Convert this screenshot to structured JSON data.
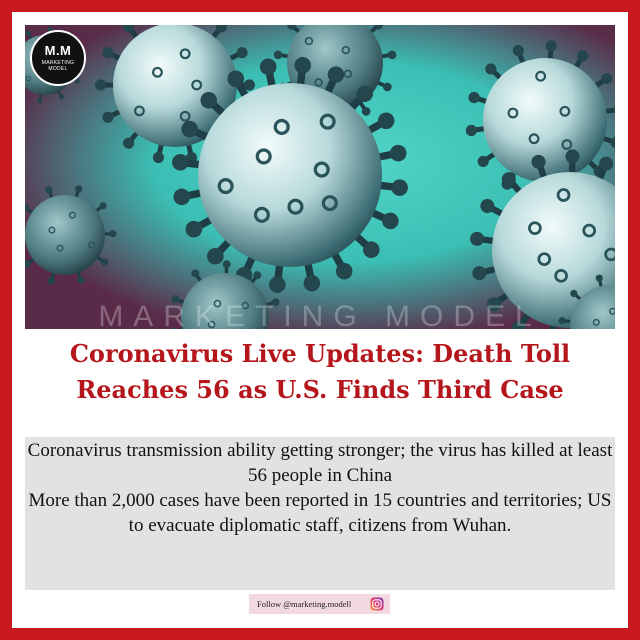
{
  "logo": {
    "mark": "M.M",
    "name": "MARKETING MODEL"
  },
  "watermark": "MARKETING MODEL",
  "headline": {
    "line1": "Coronavirus Live Updates: Death Toll",
    "line2": "Reaches 56 as U.S. Finds Third Case"
  },
  "body": {
    "paragraph1": "Coronavirus transmission ability getting stronger; the virus has killed at least 56 people in China",
    "paragraph2": "More than 2,000 cases have been reported in 15 countries and territories; US to evacuate diplomatic staff, citizens from Wuhan."
  },
  "footer": {
    "follow_text": "Follow @marketing.modell",
    "icon": "instagram-icon"
  },
  "colors": {
    "border": "#c8191e",
    "headline": "#b5161b",
    "virus": "#cfe6e6",
    "background_teal": "#3ec9bd",
    "background_magenta": "#5a2b48"
  }
}
